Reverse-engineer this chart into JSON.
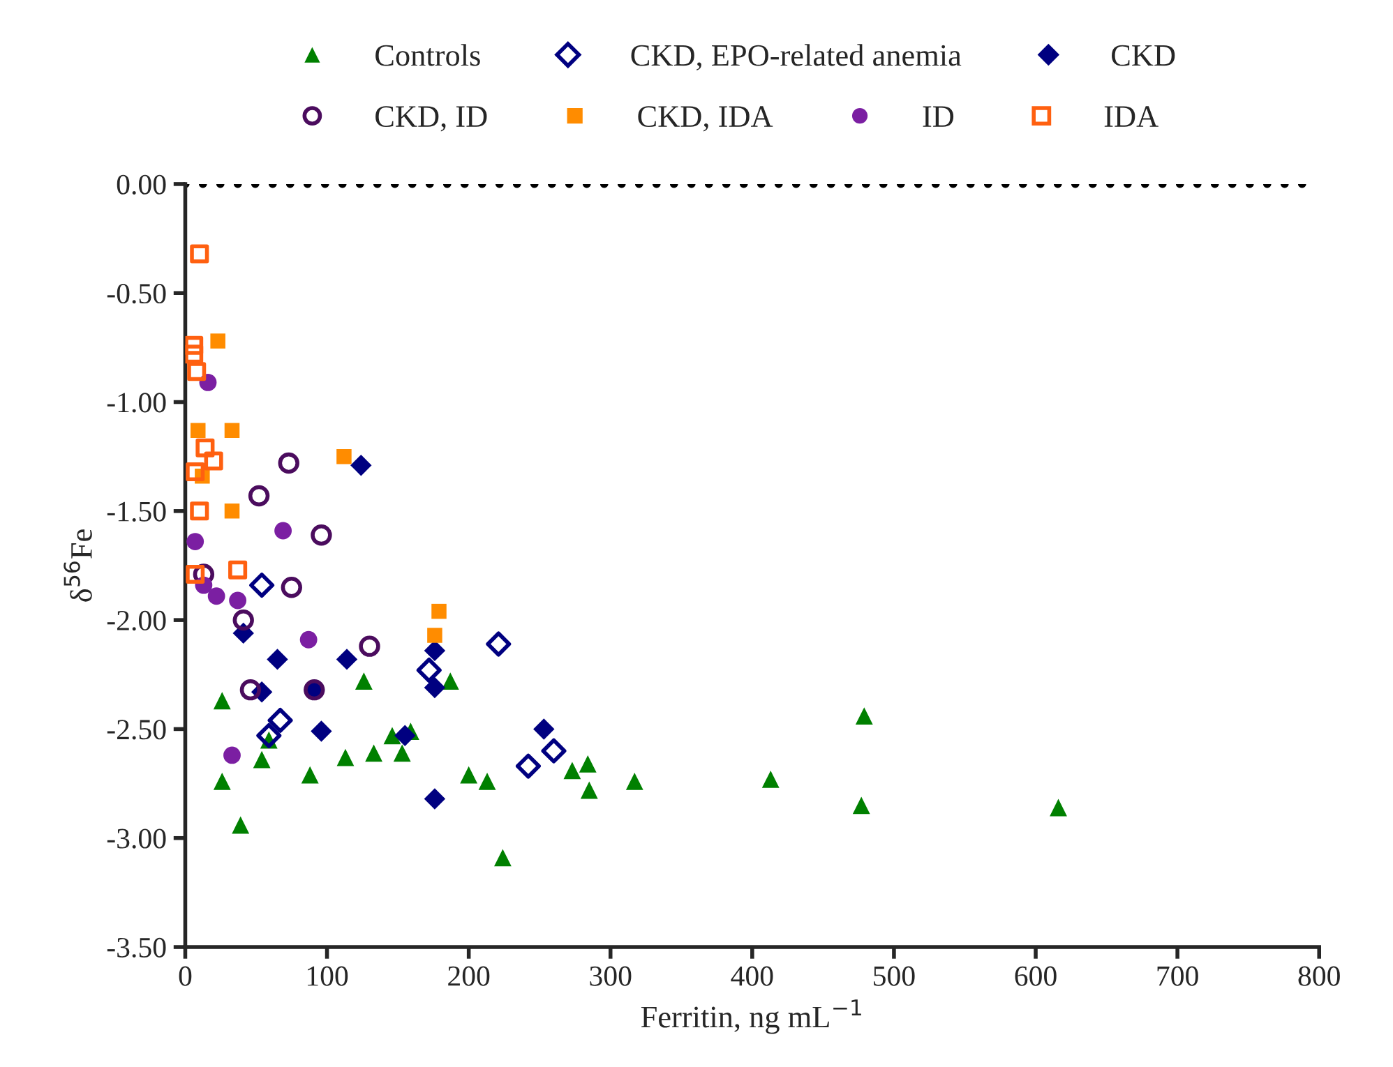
{
  "chart_data": {
    "type": "scatter",
    "xlabel": "Ferritin, ng mL$^{−1}$",
    "ylabel": "δ$^{56}$Fe",
    "xlim": [
      0,
      800
    ],
    "xticks": [
      0,
      100,
      200,
      300,
      400,
      500,
      600,
      700,
      800
    ],
    "ylim": [
      -3.5,
      0
    ],
    "yticks": [
      {
        "value": 0,
        "label": "0.00"
      },
      {
        "value": -0.5,
        "label": "-0.50"
      },
      {
        "value": -1,
        "label": "-1.00"
      },
      {
        "value": -1.5,
        "label": "-1.50"
      },
      {
        "value": -2,
        "label": "-2.00"
      },
      {
        "value": -2.5,
        "label": "-2.50"
      },
      {
        "value": -3,
        "label": "-3.00"
      },
      {
        "value": -3.5,
        "label": "-3.50"
      }
    ],
    "grid": false,
    "legend": "top",
    "ref_lines": [
      {
        "axis": "y",
        "value": 0,
        "color": "#000000",
        "line_style": "dotted"
      }
    ],
    "series": [
      {
        "name": "Controls",
        "color": "#008000",
        "marker": "triangle",
        "x": [
          26,
          26,
          39,
          54,
          59,
          88,
          126,
          113,
          133,
          146,
          153,
          159,
          187,
          200,
          213,
          224,
          273,
          284,
          285,
          317,
          413,
          477,
          479,
          616
        ],
        "values": [
          -2.37,
          -2.74,
          -2.94,
          -2.64,
          -2.55,
          -2.71,
          -2.28,
          -2.63,
          -2.61,
          -2.53,
          -2.61,
          -2.51,
          -2.28,
          -2.71,
          -2.74,
          -3.09,
          -2.69,
          -2.66,
          -2.78,
          -2.74,
          -2.73,
          -2.85,
          -2.44,
          -2.86
        ]
      },
      {
        "name": "CKD, EPO-related anemia",
        "color": "#000080",
        "marker": "diamond",
        "x": [
          54,
          59,
          67,
          172,
          221,
          242,
          260
        ],
        "values": [
          -1.84,
          -2.53,
          -2.46,
          -2.23,
          -2.11,
          -2.67,
          -2.6
        ]
      },
      {
        "name": "CKD",
        "color": "#000080",
        "marker": "diamond",
        "x": [
          124,
          41,
          65,
          54,
          91,
          96,
          114,
          176,
          176,
          155,
          176,
          253
        ],
        "values": [
          -1.29,
          -2.06,
          -2.18,
          -2.33,
          -2.32,
          -2.51,
          -2.18,
          -2.14,
          -2.31,
          -2.53,
          -2.82,
          -2.5
        ]
      },
      {
        "name": "CKD, ID",
        "color": "#4b0c5e",
        "marker": "circle",
        "x": [
          73,
          52,
          96,
          13,
          75,
          41,
          130,
          46,
          91
        ],
        "values": [
          -1.28,
          -1.43,
          -1.61,
          -1.79,
          -1.85,
          -2.0,
          -2.12,
          -2.32,
          -2.32
        ]
      },
      {
        "name": "CKD, IDA",
        "color": "#ff8c00",
        "marker": "square",
        "x": [
          23,
          9,
          33,
          112,
          12,
          33,
          179,
          176
        ],
        "values": [
          -0.72,
          -1.13,
          -1.13,
          -1.25,
          -1.34,
          -1.5,
          -1.96,
          -2.07
        ]
      },
      {
        "name": "ID",
        "color": "#7b1fa2",
        "marker": "circle",
        "x": [
          16,
          7,
          69,
          13,
          22,
          37,
          87,
          33
        ],
        "values": [
          -0.91,
          -1.64,
          -1.59,
          -1.84,
          -1.89,
          -1.91,
          -2.09,
          -2.62
        ]
      },
      {
        "name": "IDA",
        "color": "#ff6010",
        "marker": "square",
        "x": [
          10,
          6,
          6,
          8,
          14,
          20,
          7,
          10,
          37,
          7
        ],
        "values": [
          -0.32,
          -0.74,
          -0.78,
          -0.86,
          -1.21,
          -1.27,
          -1.32,
          -1.5,
          -1.77,
          -1.79
        ]
      }
    ]
  }
}
